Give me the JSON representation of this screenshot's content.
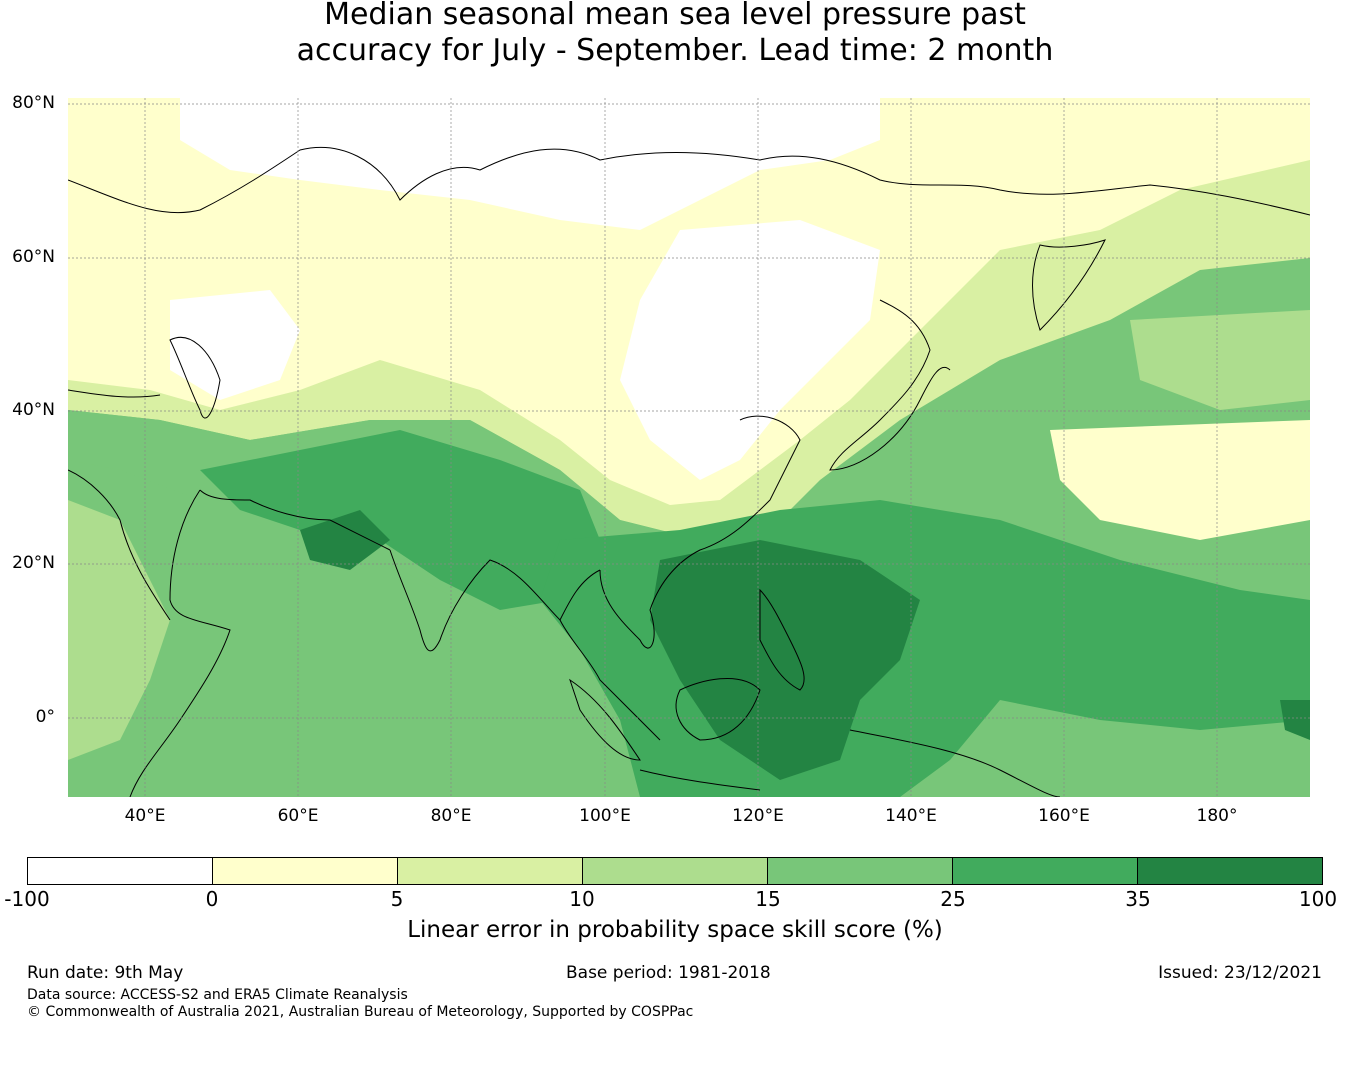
{
  "title": {
    "line1": "Median seasonal mean sea level pressure past",
    "line2": "accuracy for July - September. Lead time: 2 month"
  },
  "map": {
    "lat_labels": [
      "80°N",
      "60°N",
      "40°N",
      "20°N",
      "0°"
    ],
    "lon_labels": [
      "40°E",
      "60°E",
      "80°E",
      "100°E",
      "120°E",
      "140°E",
      "160°E",
      "180°"
    ],
    "lat_range": [
      -10,
      81
    ],
    "lon_range": [
      30,
      192
    ],
    "gridlines": true
  },
  "colorbar": {
    "ticks": [
      "-100",
      "0",
      "5",
      "10",
      "15",
      "25",
      "35",
      "100"
    ],
    "label": "Linear error in probability space skill score (%)",
    "bins": [
      {
        "range": "-100 to 0",
        "color": "#ffffff"
      },
      {
        "range": "0 to 5",
        "color": "#ffffcc"
      },
      {
        "range": "5 to 10",
        "color": "#d9f0a3"
      },
      {
        "range": "10 to 15",
        "color": "#addd8e"
      },
      {
        "range": "15 to 25",
        "color": "#78c679"
      },
      {
        "range": "25 to 35",
        "color": "#41ab5d"
      },
      {
        "range": "35 to 100",
        "color": "#238443"
      }
    ]
  },
  "footer": {
    "run_date": "Run date: 9th May",
    "base_period": "Base period: 1981-2018",
    "issued": "Issued: 23/12/2021",
    "data_source": "Data source: ACCESS-S2 and ERA5 Climate Reanalysis",
    "copyright": "© Commonwealth of Australia 2021, Australian Bureau of Meteorology, Supported by COSPPac"
  }
}
